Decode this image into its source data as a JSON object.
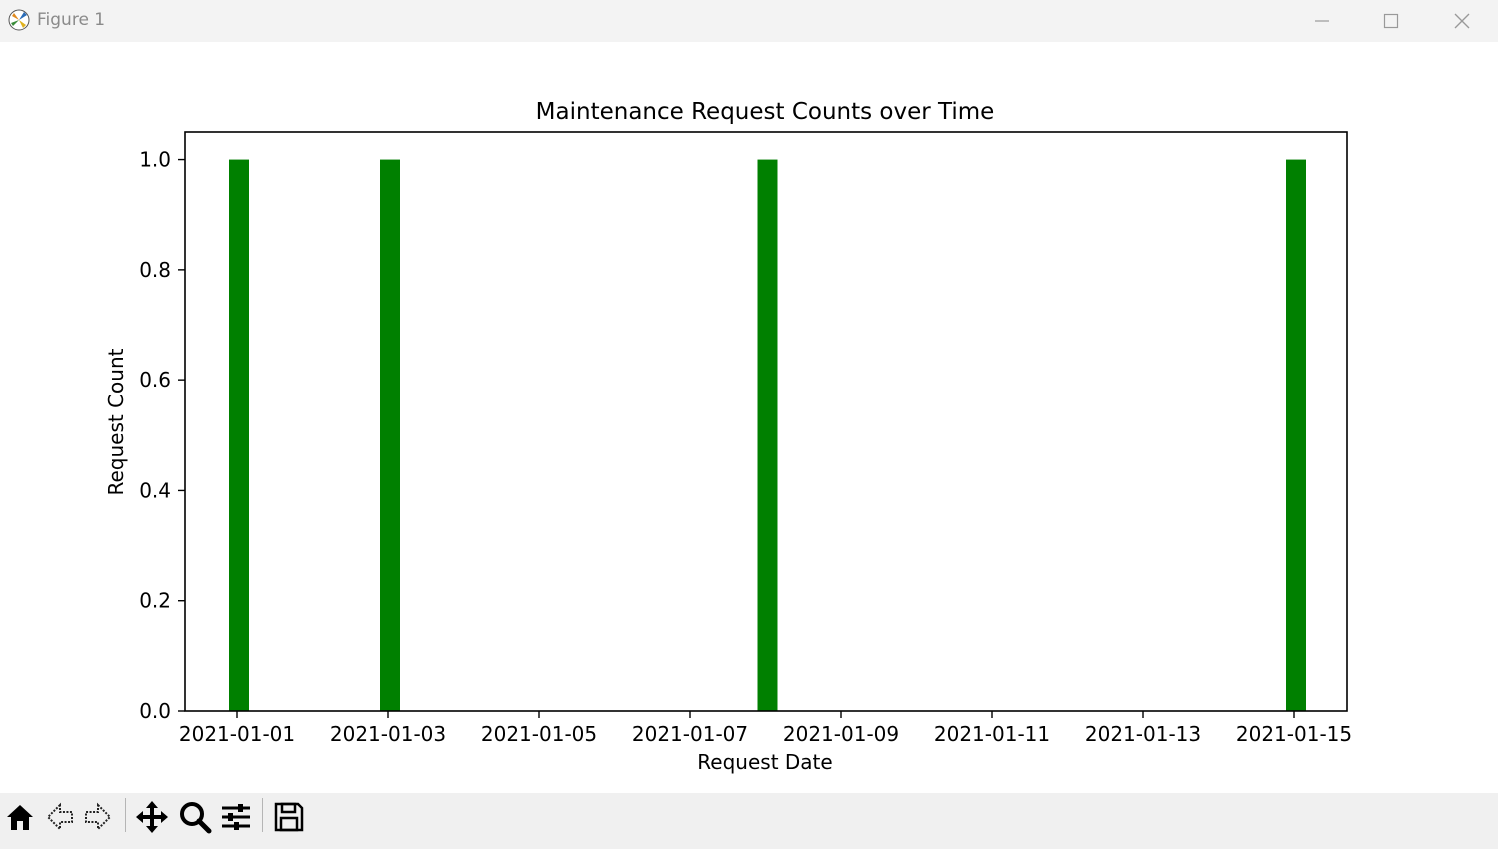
{
  "window": {
    "title": "Figure 1",
    "controls": [
      "minimize",
      "maximize",
      "close"
    ]
  },
  "toolbar": {
    "buttons": [
      "home-icon",
      "back-arrow-icon",
      "forward-arrow-icon",
      "pan-icon",
      "zoom-icon",
      "configure-subplots-icon",
      "save-icon"
    ]
  },
  "chart_data": {
    "type": "bar",
    "title": "Maintenance Request Counts over Time",
    "xlabel": "Request Date",
    "ylabel": "Request Count",
    "x": [
      "2021-01-01",
      "2021-01-03",
      "2021-01-08",
      "2021-01-15"
    ],
    "values": [
      1,
      1,
      1,
      1
    ],
    "color": "#008000",
    "xlim": [
      "2020-12-31",
      "2021-01-15"
    ],
    "ylim": [
      0,
      1.05
    ],
    "xticks": [
      "2021-01-01",
      "2021-01-03",
      "2021-01-05",
      "2021-01-07",
      "2021-01-09",
      "2021-01-11",
      "2021-01-13",
      "2021-01-15"
    ],
    "yticks": [
      "0.0",
      "0.2",
      "0.4",
      "0.6",
      "0.8",
      "1.0"
    ],
    "grid": false
  }
}
